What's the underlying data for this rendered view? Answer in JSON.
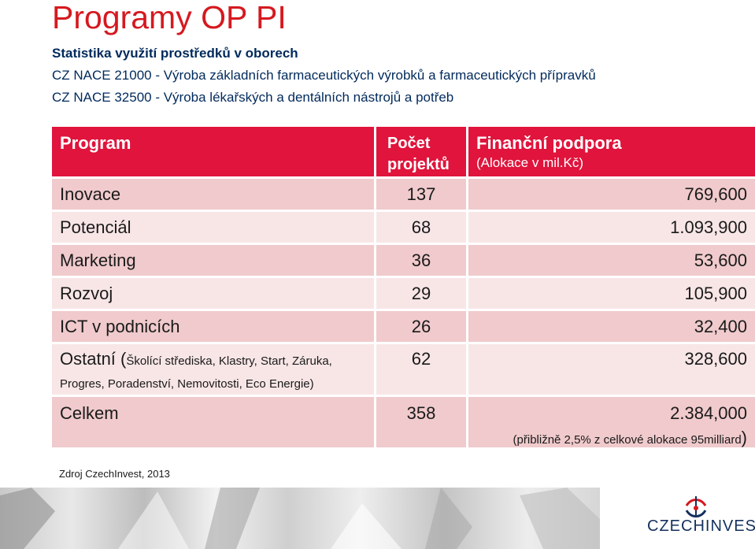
{
  "title": "Programy OP PI",
  "subheading": "Statistika využití prostředků v oborech",
  "nace_lines": [
    "CZ NACE 21000 - Výroba základních farmaceutických výrobků a farmaceutických přípravků",
    "CZ NACE 32500 - Výroba lékařských a dentálních nástrojů a potřeb"
  ],
  "table": {
    "header": {
      "program": "Program",
      "count_line1": "Počet",
      "count_line2": "projektů",
      "funding": "Finanční podpora",
      "funding_unit": "(Alokace v mil.Kč)"
    },
    "rows": [
      {
        "program": "Inovace",
        "count": "137",
        "funding": "769,600"
      },
      {
        "program": "Potenciál",
        "count": "68",
        "funding": "1.093,900"
      },
      {
        "program": "Marketing",
        "count": "36",
        "funding": "53,600"
      },
      {
        "program": "Rozvoj",
        "count": "29",
        "funding": "105,900"
      },
      {
        "program": "ICT v podnicích",
        "count": "26",
        "funding": "32,400"
      },
      {
        "program": "Ostatní (",
        "program_note": "Školící střediska, Klastry, Start, Záruka, Progres, Poradenství, Nemovitosti, Eco Energie)",
        "count": "62",
        "funding": "328,600"
      }
    ],
    "total": {
      "program": "Celkem",
      "count": "358",
      "funding": "2.384,000",
      "note": "(přibližně 2,5% z celkové alokace 95milliard",
      "note_close": ")"
    }
  },
  "source": "Zdroj CzechInvest, 2013",
  "logo": {
    "text": "CZECHINVEST",
    "colors": {
      "red": "#d5191f",
      "blue": "#14305e"
    }
  },
  "colors": {
    "title": "#d5191f",
    "header_bg": "#e0143c",
    "row_dark": "#f0cacc",
    "row_light": "#f8e6e7",
    "text_blue": "#002a5c"
  }
}
